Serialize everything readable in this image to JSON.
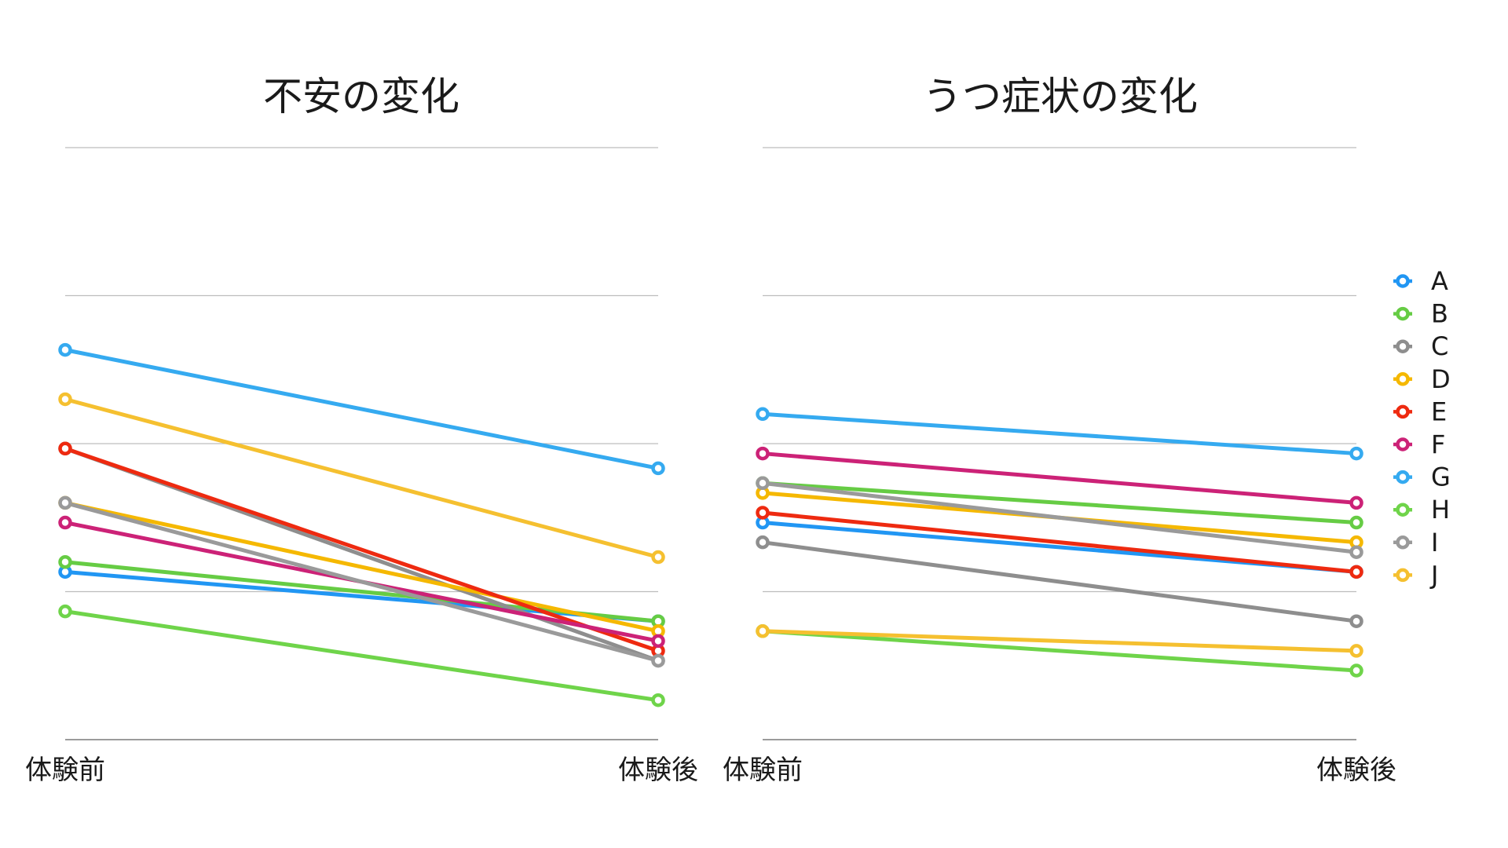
{
  "chart_data": [
    {
      "type": "line",
      "title": "不安の変化",
      "categories": [
        "体験前",
        "体験後"
      ],
      "ylim": [
        0,
        12
      ],
      "grid": true,
      "series": [
        {
          "name": "A",
          "color": "#2196F3",
          "values": [
            3.4,
            2.4
          ]
        },
        {
          "name": "B",
          "color": "#66CC44",
          "values": [
            3.6,
            2.4
          ]
        },
        {
          "name": "C",
          "color": "#8E8E8E",
          "values": [
            5.9,
            1.6
          ]
        },
        {
          "name": "D",
          "color": "#F5B800",
          "values": [
            4.8,
            2.2
          ]
        },
        {
          "name": "E",
          "color": "#EE2A10",
          "values": [
            5.9,
            1.8
          ]
        },
        {
          "name": "F",
          "color": "#CC2277",
          "values": [
            4.4,
            2.0
          ]
        },
        {
          "name": "G",
          "color": "#35AAF0",
          "values": [
            7.9,
            5.5
          ]
        },
        {
          "name": "H",
          "color": "#6FD44A",
          "values": [
            2.6,
            0.8
          ]
        },
        {
          "name": "I",
          "color": "#9A9A9A",
          "values": [
            4.8,
            1.6
          ]
        },
        {
          "name": "J",
          "color": "#F5C030",
          "values": [
            6.9,
            3.7
          ]
        }
      ]
    },
    {
      "type": "line",
      "title": "うつ症状の変化",
      "categories": [
        "体験前",
        "体験後"
      ],
      "ylim": [
        0,
        12
      ],
      "grid": true,
      "series": [
        {
          "name": "A",
          "color": "#2196F3",
          "values": [
            4.4,
            3.4
          ]
        },
        {
          "name": "B",
          "color": "#66CC44",
          "values": [
            5.2,
            4.4
          ]
        },
        {
          "name": "C",
          "color": "#8E8E8E",
          "values": [
            4.0,
            2.4
          ]
        },
        {
          "name": "D",
          "color": "#F5B800",
          "values": [
            5.0,
            4.0
          ]
        },
        {
          "name": "E",
          "color": "#EE2A10",
          "values": [
            4.6,
            3.4
          ]
        },
        {
          "name": "F",
          "color": "#CC2277",
          "values": [
            5.8,
            4.8
          ]
        },
        {
          "name": "G",
          "color": "#35AAF0",
          "values": [
            6.6,
            5.8
          ]
        },
        {
          "name": "H",
          "color": "#6FD44A",
          "values": [
            2.2,
            1.4
          ]
        },
        {
          "name": "I",
          "color": "#9A9A9A",
          "values": [
            5.2,
            3.8
          ]
        },
        {
          "name": "J",
          "color": "#F5C030",
          "values": [
            2.2,
            1.8
          ]
        }
      ]
    }
  ],
  "legend": {
    "position": "right",
    "items": [
      {
        "label": "A",
        "color": "#2196F3"
      },
      {
        "label": "B",
        "color": "#66CC44"
      },
      {
        "label": "C",
        "color": "#8E8E8E"
      },
      {
        "label": "D",
        "color": "#F5B800"
      },
      {
        "label": "E",
        "color": "#EE2A10"
      },
      {
        "label": "F",
        "color": "#CC2277"
      },
      {
        "label": "G",
        "color": "#35AAF0"
      },
      {
        "label": "H",
        "color": "#6FD44A"
      },
      {
        "label": "I",
        "color": "#9A9A9A"
      },
      {
        "label": "J",
        "color": "#F5C030"
      }
    ]
  }
}
